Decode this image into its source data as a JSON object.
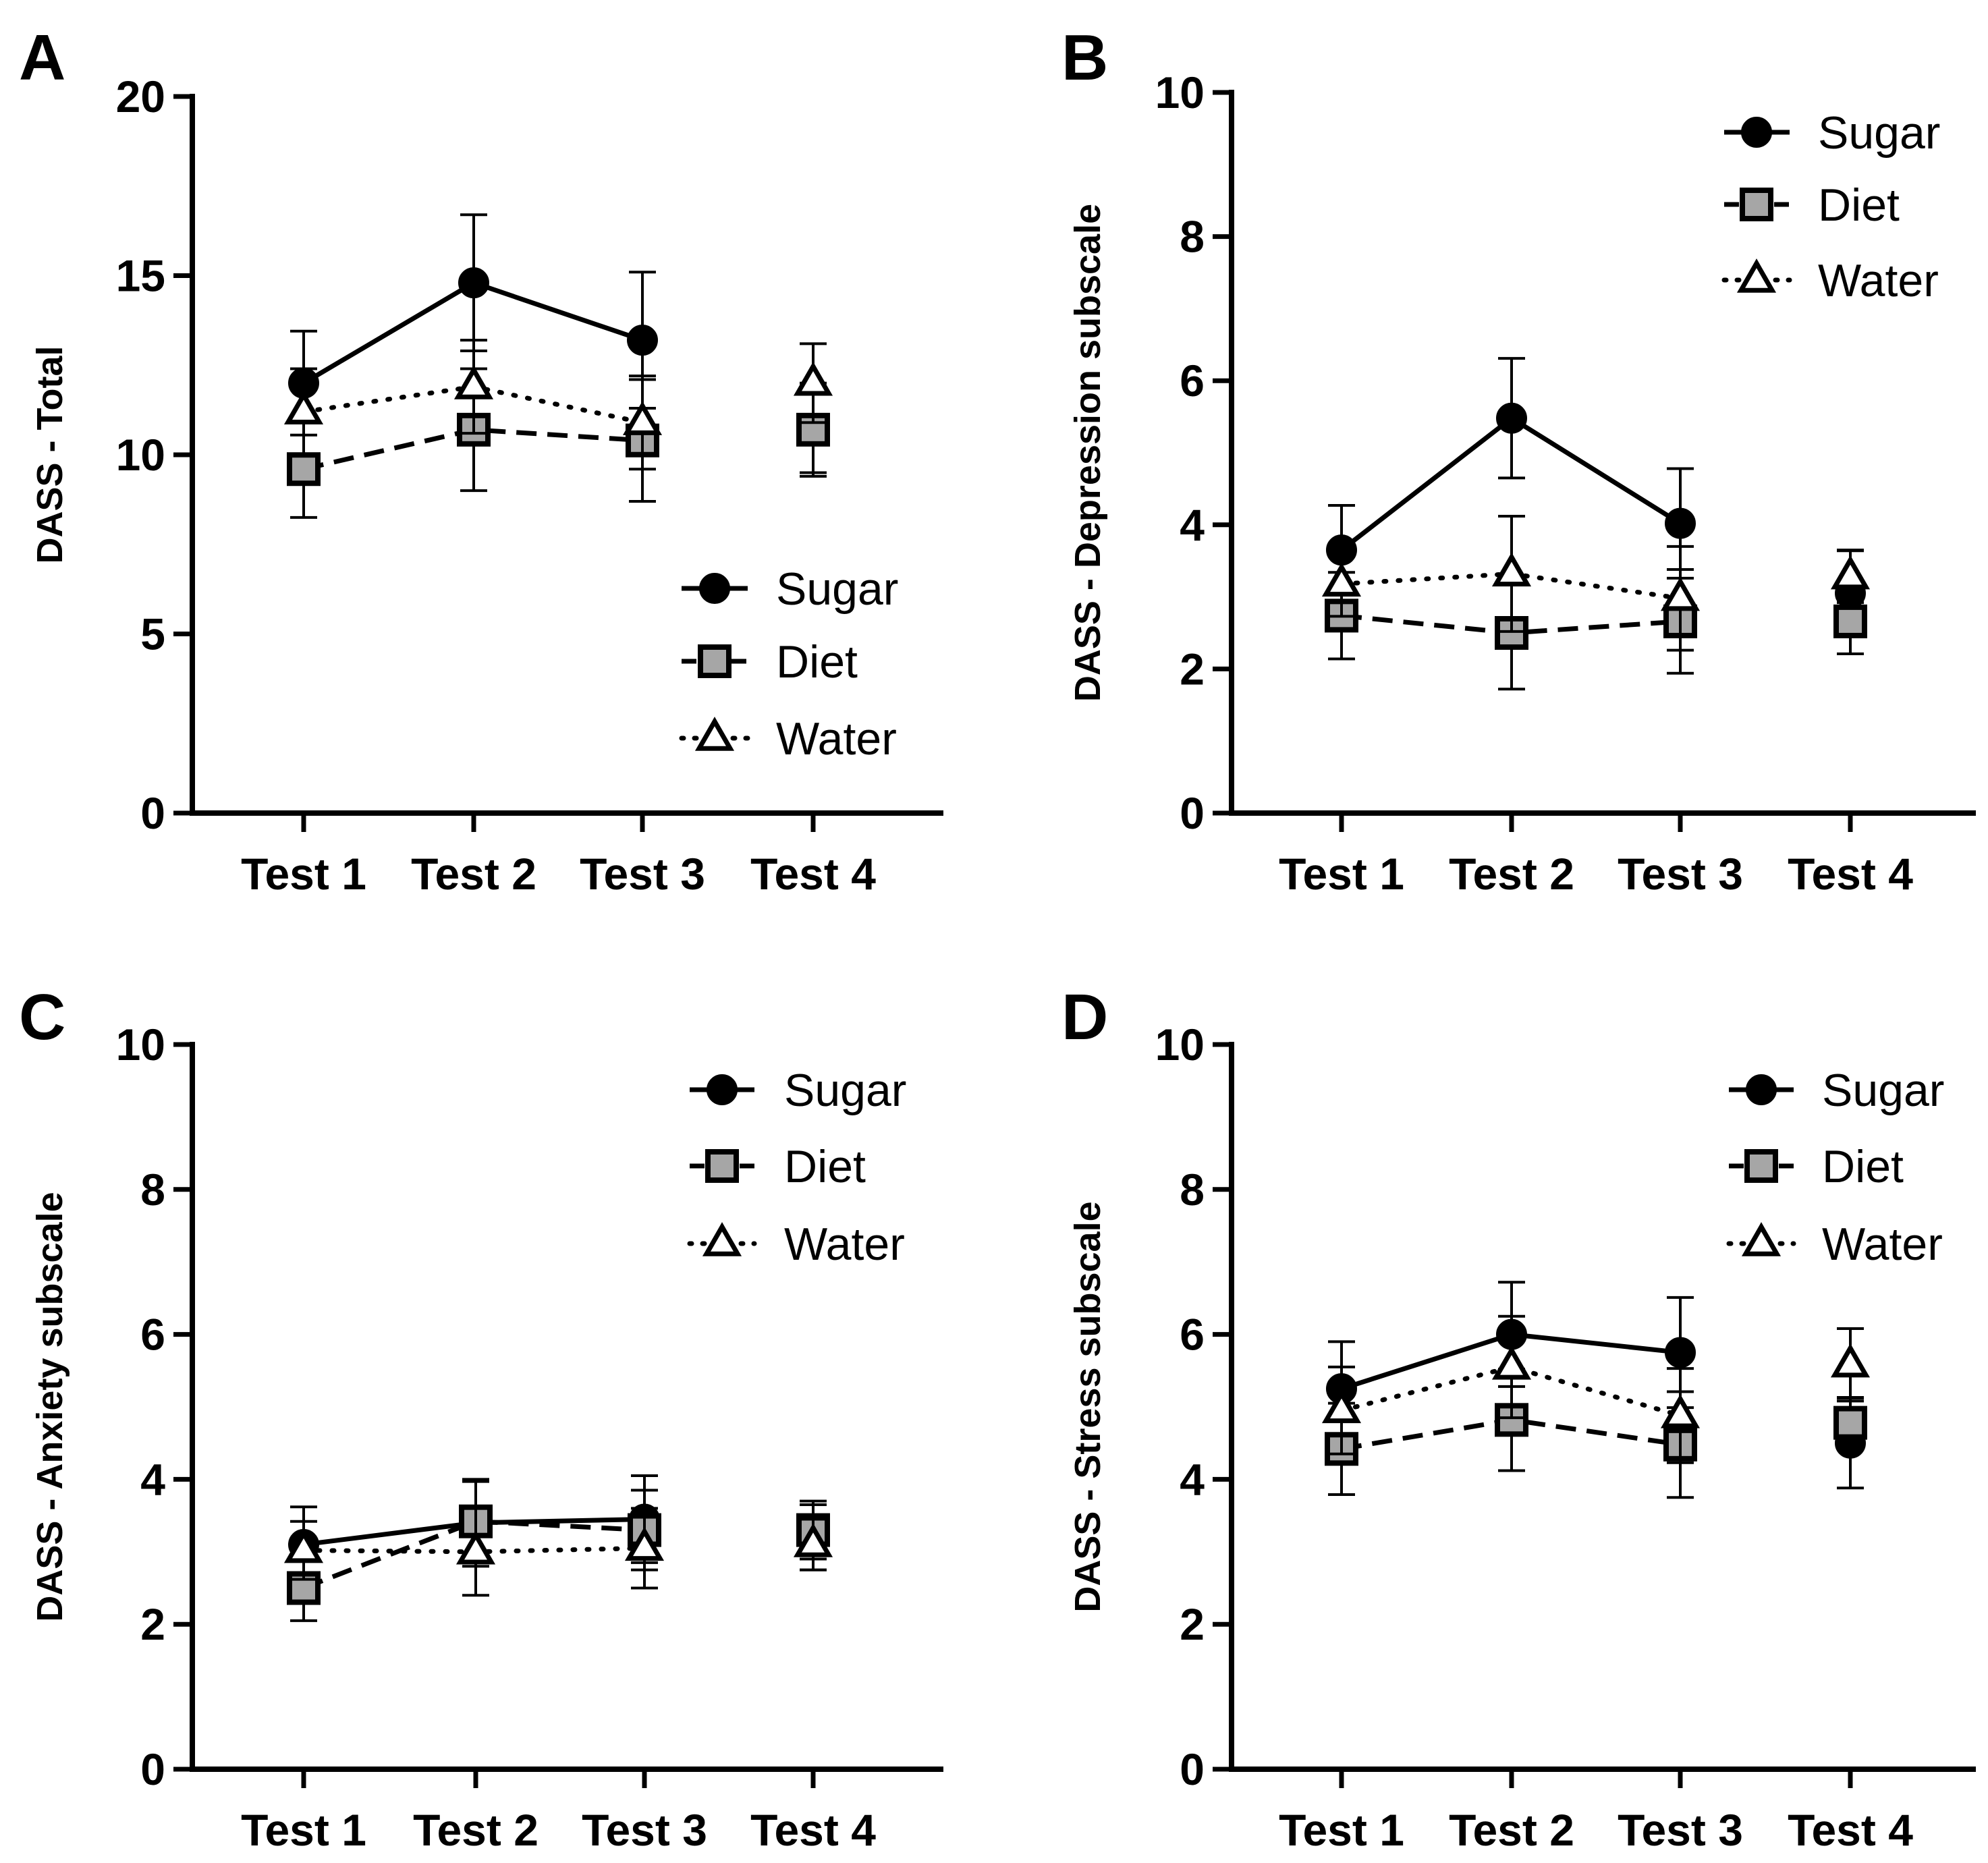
{
  "chart_data": [
    {
      "panel": "A",
      "type": "line",
      "ylabel": "DASS -  Total",
      "categories": [
        "Test 1",
        "Test 2",
        "Test 3",
        "Test 4"
      ],
      "ylim": [
        0,
        20
      ],
      "yticks": [
        0,
        5,
        10,
        15,
        20
      ],
      "legend_position": "bottom-right",
      "series": [
        {
          "name": "Sugar",
          "marker": "circle",
          "line": "solid",
          "fill": "#000000",
          "values": [
            12.0,
            14.8,
            13.2,
            10.7
          ],
          "errors": [
            1.45,
            1.9,
            1.9,
            1.3
          ]
        },
        {
          "name": "Diet",
          "marker": "square",
          "line": "dashed",
          "fill": "#a6a6a6",
          "values": [
            9.6,
            10.7,
            10.4,
            10.7
          ],
          "errors": [
            1.35,
            1.7,
            1.7,
            1.2
          ]
        },
        {
          "name": "Water",
          "marker": "triangle",
          "line": "dotted",
          "fill": "#ffffff",
          "values": [
            11.2,
            11.9,
            10.9,
            12.0
          ],
          "errors": [
            1.2,
            1.3,
            1.3,
            1.1
          ]
        }
      ]
    },
    {
      "panel": "B",
      "type": "line",
      "ylabel": "DASS -  Depression subscale",
      "categories": [
        "Test 1",
        "Test 2",
        "Test 3",
        "Test 4"
      ],
      "ylim": [
        0,
        10
      ],
      "yticks": [
        0,
        2,
        4,
        6,
        8,
        10
      ],
      "legend_position": "top-right",
      "series": [
        {
          "name": "Sugar",
          "marker": "circle",
          "line": "solid",
          "fill": "#000000",
          "values": [
            3.65,
            5.48,
            4.02,
            3.05
          ],
          "errors": [
            0.62,
            0.83,
            0.76,
            0.6
          ]
        },
        {
          "name": "Diet",
          "marker": "square",
          "line": "dashed",
          "fill": "#a6a6a6",
          "values": [
            2.74,
            2.5,
            2.66,
            2.66
          ],
          "errors": [
            0.6,
            0.78,
            0.72,
            0.45
          ]
        },
        {
          "name": "Water",
          "marker": "triangle",
          "line": "dotted",
          "fill": "#ffffff",
          "values": [
            3.18,
            3.32,
            2.98,
            3.28
          ],
          "errors": [
            0.45,
            0.8,
            0.72,
            0.36
          ]
        }
      ]
    },
    {
      "panel": "C",
      "type": "line",
      "ylabel": "DASS -  Anxiety subscale",
      "categories": [
        "Test 1",
        "Test 2",
        "Test 3",
        "Test 4"
      ],
      "ylim": [
        0,
        10
      ],
      "yticks": [
        0,
        2,
        4,
        6,
        8,
        10
      ],
      "legend_position": "top-right",
      "series": [
        {
          "name": "Sugar",
          "marker": "circle",
          "line": "solid",
          "fill": "#000000",
          "values": [
            3.1,
            3.4,
            3.45,
            3.2
          ],
          "errors": [
            0.52,
            0.6,
            0.6,
            0.45
          ]
        },
        {
          "name": "Diet",
          "marker": "square",
          "line": "dashed",
          "fill": "#a6a6a6",
          "values": [
            2.5,
            3.42,
            3.3,
            3.3
          ],
          "errors": [
            0.45,
            0.55,
            0.55,
            0.4
          ]
        },
        {
          "name": "Water",
          "marker": "triangle",
          "line": "dotted",
          "fill": "#ffffff",
          "values": [
            3.02,
            3.0,
            3.05,
            3.1
          ],
          "errors": [
            0.4,
            0.6,
            0.55,
            0.35
          ]
        }
      ]
    },
    {
      "panel": "D",
      "type": "line",
      "ylabel": "DASS -  Stress subscale",
      "categories": [
        "Test 1",
        "Test 2",
        "Test 3",
        "Test 4"
      ],
      "ylim": [
        0,
        10
      ],
      "yticks": [
        0,
        2,
        4,
        6,
        8,
        10
      ],
      "legend_position": "top-right",
      "series": [
        {
          "name": "Sugar",
          "marker": "circle",
          "line": "solid",
          "fill": "#000000",
          "values": [
            5.25,
            6.0,
            5.75,
            4.5
          ],
          "errors": [
            0.65,
            0.72,
            0.76,
            0.62
          ]
        },
        {
          "name": "Diet",
          "marker": "square",
          "line": "dashed",
          "fill": "#a6a6a6",
          "values": [
            4.42,
            4.82,
            4.48,
            4.78
          ],
          "errors": [
            0.63,
            0.7,
            0.73,
            0.35
          ]
        },
        {
          "name": "Water",
          "marker": "triangle",
          "line": "dotted",
          "fill": "#ffffff",
          "values": [
            4.95,
            5.55,
            4.88,
            5.58
          ],
          "errors": [
            0.6,
            0.7,
            0.65,
            0.5
          ]
        }
      ]
    }
  ]
}
